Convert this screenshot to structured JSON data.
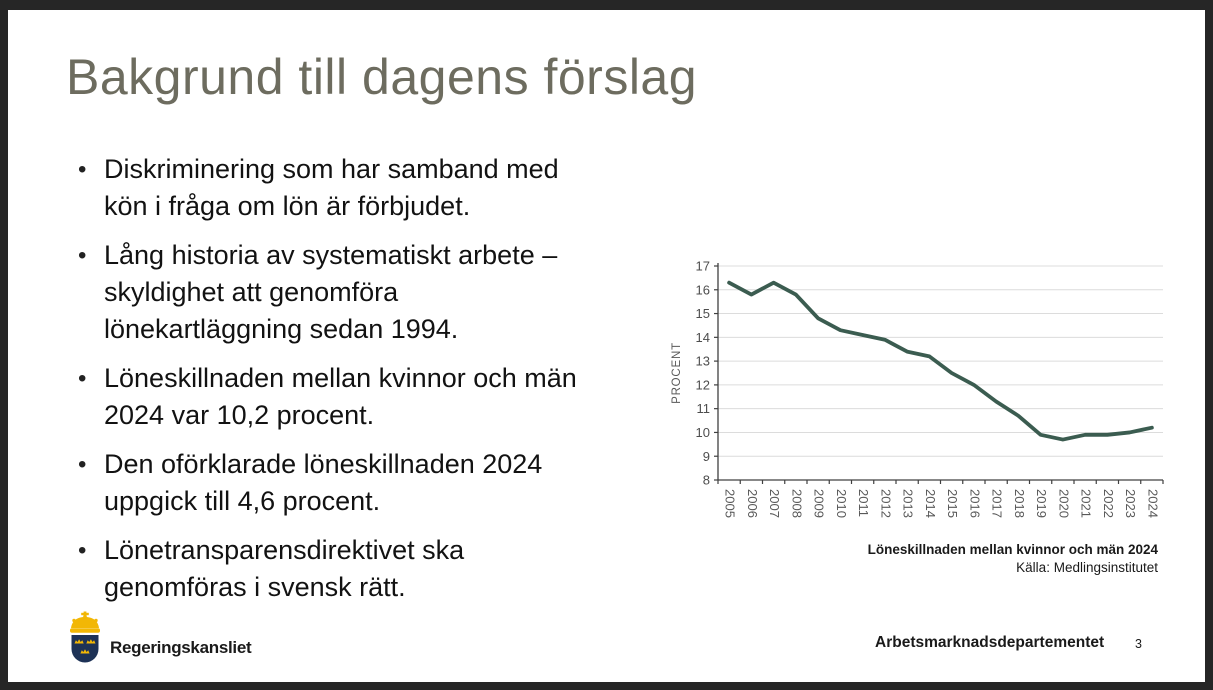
{
  "frame_color": "#262626",
  "slide": {
    "title": "Bakgrund till dagens förslag",
    "bullets": [
      {
        "lines": [
          "Diskriminering som har samband med",
          "kön i fråga om lön är förbjudet."
        ]
      },
      {
        "lines": [
          "Lång historia av systematiskt arbete –",
          "skyldighet att genomföra",
          "lönekartläggning sedan 1994."
        ]
      },
      {
        "lines": [
          "Löneskillnaden mellan kvinnor och män",
          "2024 var 10,2 procent."
        ]
      },
      {
        "lines": [
          "Den oförklarade löneskillnaden 2024",
          "uppgick till 4,6 procent."
        ]
      },
      {
        "lines": [
          "Lönetransparensdirektivet ska",
          "genomföras i svensk rätt."
        ]
      }
    ]
  },
  "chart_data": {
    "type": "line",
    "title": "",
    "xlabel": "",
    "ylabel": "PROCENT",
    "categories": [
      "2005",
      "2006",
      "2007",
      "2008",
      "2009",
      "2010",
      "2011",
      "2012",
      "2013",
      "2014",
      "2015",
      "2016",
      "2017",
      "2018",
      "2019",
      "2020",
      "2021",
      "2022",
      "2023",
      "2024"
    ],
    "values": [
      16.3,
      15.8,
      16.3,
      15.8,
      14.8,
      14.3,
      14.1,
      13.9,
      13.4,
      13.2,
      12.5,
      12.0,
      11.3,
      10.7,
      9.9,
      9.7,
      9.9,
      9.9,
      10.0,
      10.2
    ],
    "ylim": [
      8,
      17
    ],
    "ytick_step": 1,
    "grid": true,
    "legend": "none",
    "line_color": "#3b5c50",
    "axis_color": "#404040",
    "grid_color": "#dcdcdc",
    "tick_label_color": "#4d4d4d",
    "xtick_label_color": "#595959",
    "caption_bold": "Löneskillnaden mellan kvinnor och män 2024",
    "caption_source": "Källa: Medlingsinstitutet"
  },
  "footer": {
    "logo_text": "Regeringskansliet",
    "department": "Arbetsmarknadsdepartementet",
    "page_number": "3"
  },
  "colors": {
    "title": "#6d6c5f",
    "body_text": "#121212",
    "shield_blue": "#1d3256",
    "crown_gold": "#f2b705"
  }
}
